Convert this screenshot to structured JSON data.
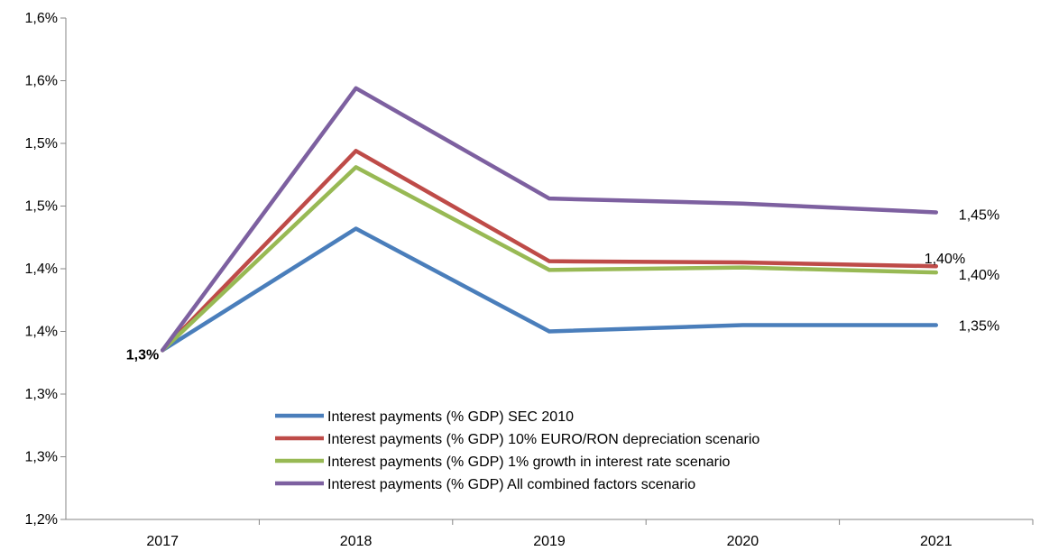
{
  "chart_data": {
    "type": "line",
    "categories": [
      "2017",
      "2018",
      "2019",
      "2020",
      "2021"
    ],
    "y_axis_ticks": [
      "1,2%",
      "1,3%",
      "1,3%",
      "1,4%",
      "1,4%",
      "1,5%",
      "1,5%",
      "1,6%",
      "1,6%"
    ],
    "ylim": [
      1.2,
      1.6
    ],
    "grid": false,
    "legend_position": "bottom-center",
    "series": [
      {
        "name": "Interest payments (% GDP) SEC 2010",
        "color": "#4a7ebb",
        "values": [
          1.335,
          1.432,
          1.35,
          1.355,
          1.355
        ],
        "end_label": "1,35%"
      },
      {
        "name": "Interest payments (% GDP) 10% EURO/RON depreciation scenario",
        "color": "#be4b48",
        "values": [
          1.335,
          1.494,
          1.406,
          1.405,
          1.402
        ],
        "end_label": "1,40%"
      },
      {
        "name": "Interest payments (% GDP) 1% growth in interest rate scenario",
        "color": "#98b954",
        "values": [
          1.335,
          1.481,
          1.399,
          1.401,
          1.397
        ],
        "end_label": "1,40%"
      },
      {
        "name": "Interest payments (% GDP) All combined factors scenario",
        "color": "#7d60a0",
        "values": [
          1.335,
          1.544,
          1.456,
          1.452,
          1.445
        ],
        "end_label": "1,45%"
      }
    ],
    "start_label": "1,3%"
  }
}
